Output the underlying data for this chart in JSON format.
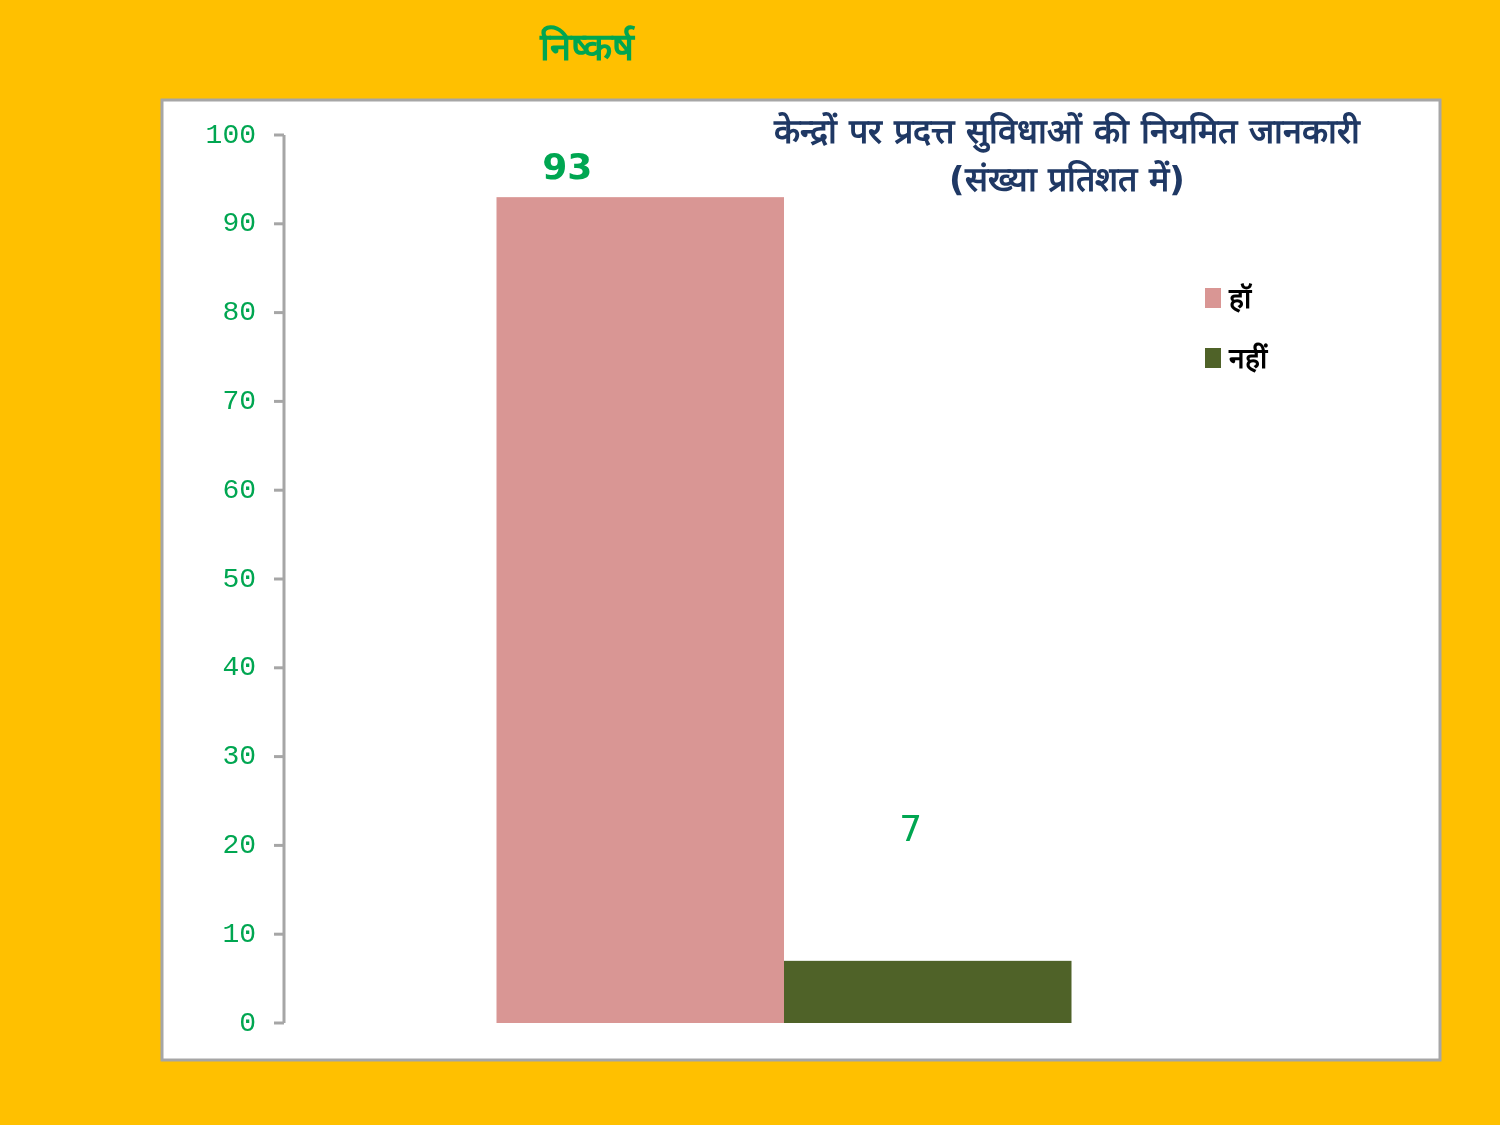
{
  "chart_data": {
    "type": "bar",
    "title": "निष्कर्ष",
    "subtitle": "केन्द्रों पर प्रदत्त सुविधाओं की नियमित जानकारी\n(संख्या प्रतिशत में)",
    "categories": [
      null
    ],
    "series": [
      {
        "name": "हॉ",
        "color": "#d99694",
        "values": [
          93
        ]
      },
      {
        "name": "नहीं",
        "color": "#4f6228",
        "values": [
          7
        ]
      }
    ],
    "ylim": [
      0,
      100
    ],
    "yticks": [
      0,
      10,
      20,
      30,
      40,
      50,
      60,
      70,
      80,
      90,
      100
    ],
    "data_labels": true,
    "grid": false,
    "legend": "right"
  }
}
